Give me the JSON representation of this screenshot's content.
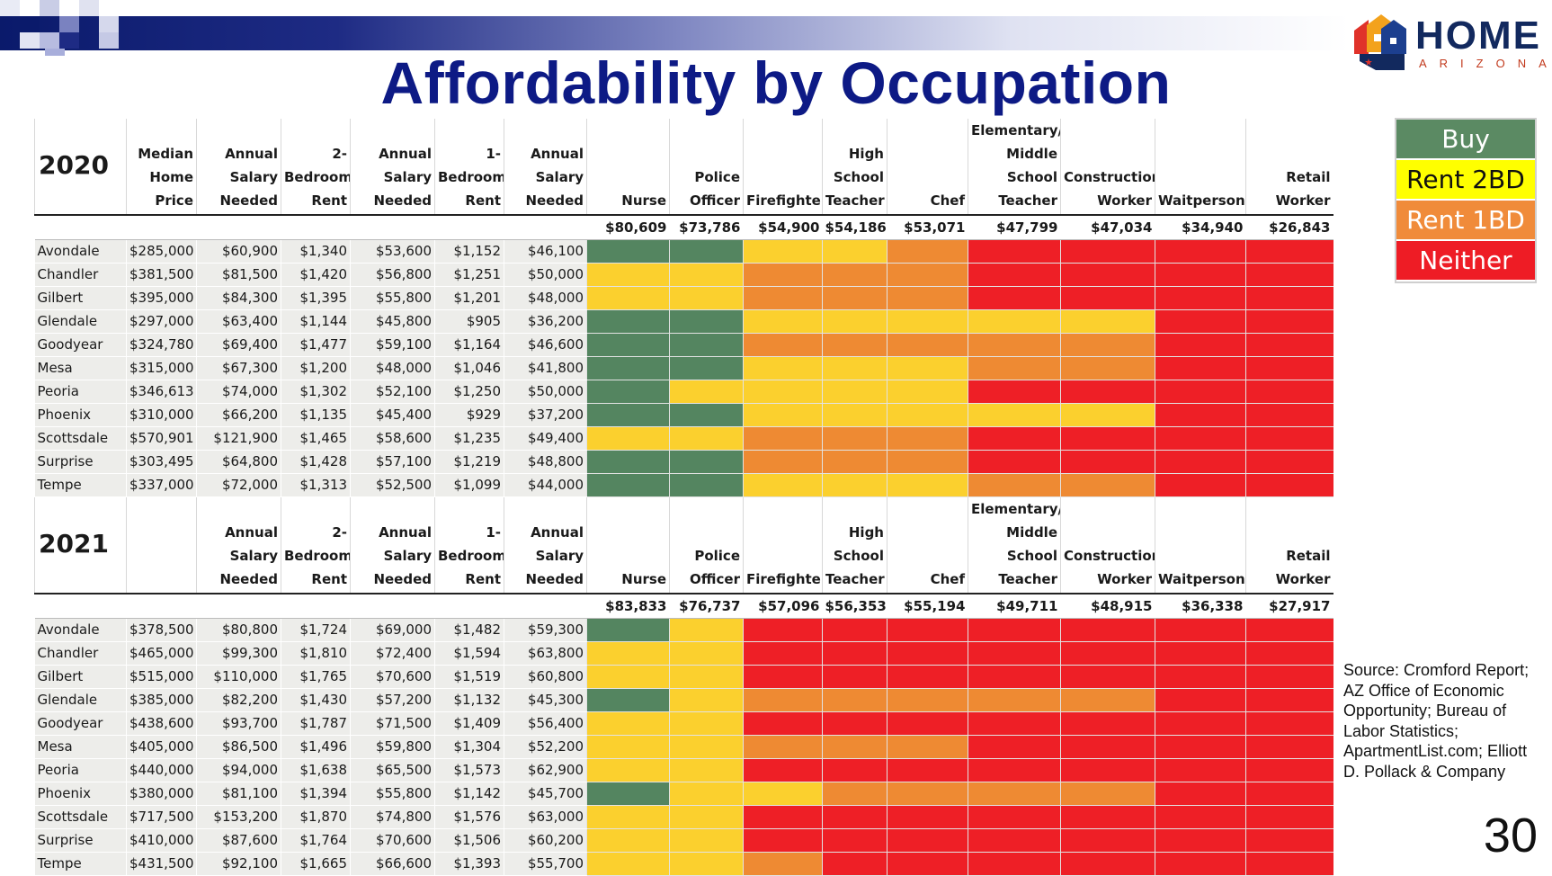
{
  "title": "Affordability by Occupation",
  "logo": {
    "word": "HOME",
    "sub": "ARIZONA"
  },
  "legend": [
    {
      "label": "Buy",
      "color": "#5b8a63",
      "text_color": "#ffffff"
    },
    {
      "label": "Rent 2BD",
      "color": "#ffff00",
      "text_color": "#111111"
    },
    {
      "label": "Rent 1BD",
      "color": "#f08b3a",
      "text_color": "#ffffff"
    },
    {
      "label": "Neither",
      "color": "#ee1c25",
      "text_color": "#ffffff"
    }
  ],
  "cell_colors": {
    "G": "#548560",
    "Y": "#fbd02e",
    "O": "#ee8a33",
    "R": "#ee1f26"
  },
  "occupations": [
    "Nurse",
    "Police Officer",
    "Firefighter",
    "High School Teacher",
    "Chef",
    "Elementary/ Middle School Teacher",
    "Construction Worker",
    "Waitperson",
    "Retail Worker"
  ],
  "tables": [
    {
      "year": "2020",
      "col_headers": [
        "Median Home Price",
        "Annual Salary Needed",
        "2- Bedroom Rent",
        "Annual Salary Needed",
        "1- Bedroom Rent",
        "Annual Salary Needed"
      ],
      "salaries": [
        "$80,609",
        "$73,786",
        "$54,900",
        "$54,186",
        "$53,071",
        "$47,799",
        "$47,034",
        "$34,940",
        "$26,843"
      ],
      "rows": [
        {
          "city": "Avondale",
          "values": [
            "$285,000",
            "$60,900",
            "$1,340",
            "$53,600",
            "$1,152",
            "$46,100"
          ],
          "colors": "GGYYORRRR"
        },
        {
          "city": "Chandler",
          "values": [
            "$381,500",
            "$81,500",
            "$1,420",
            "$56,800",
            "$1,251",
            "$50,000"
          ],
          "colors": "YYOOORRRR"
        },
        {
          "city": "Gilbert",
          "values": [
            "$395,000",
            "$84,300",
            "$1,395",
            "$55,800",
            "$1,201",
            "$48,000"
          ],
          "colors": "YYOOORRRR"
        },
        {
          "city": "Glendale",
          "values": [
            "$297,000",
            "$63,400",
            "$1,144",
            "$45,800",
            "$905",
            "$36,200"
          ],
          "colors": "GGYYYYYRR"
        },
        {
          "city": "Goodyear",
          "values": [
            "$324,780",
            "$69,400",
            "$1,477",
            "$59,100",
            "$1,164",
            "$46,600"
          ],
          "colors": "GGOOOOORR"
        },
        {
          "city": "Mesa",
          "values": [
            "$315,000",
            "$67,300",
            "$1,200",
            "$48,000",
            "$1,046",
            "$41,800"
          ],
          "colors": "GGYYYOORR"
        },
        {
          "city": "Peoria",
          "values": [
            "$346,613",
            "$74,000",
            "$1,302",
            "$52,100",
            "$1,250",
            "$50,000"
          ],
          "colors": "GYYYYRRRR"
        },
        {
          "city": "Phoenix",
          "values": [
            "$310,000",
            "$66,200",
            "$1,135",
            "$45,400",
            "$929",
            "$37,200"
          ],
          "colors": "GGYYYYYRR"
        },
        {
          "city": "Scottsdale",
          "values": [
            "$570,901",
            "$121,900",
            "$1,465",
            "$58,600",
            "$1,235",
            "$49,400"
          ],
          "colors": "YYOOORRRR"
        },
        {
          "city": "Surprise",
          "values": [
            "$303,495",
            "$64,800",
            "$1,428",
            "$57,100",
            "$1,219",
            "$48,800"
          ],
          "colors": "GGOOORRRR"
        },
        {
          "city": "Tempe",
          "values": [
            "$337,000",
            "$72,000",
            "$1,313",
            "$52,500",
            "$1,099",
            "$44,000"
          ],
          "colors": "GGYYYOORR"
        }
      ]
    },
    {
      "year": "2021",
      "col_headers": [
        "",
        "Annual Salary Needed",
        "2- Bedroom Rent",
        "Annual Salary Needed",
        "1- Bedroom Rent",
        "Annual Salary Needed"
      ],
      "salaries": [
        "$83,833",
        "$76,737",
        "$57,096",
        "$56,353",
        "$55,194",
        "$49,711",
        "$48,915",
        "$36,338",
        "$27,917"
      ],
      "rows": [
        {
          "city": "Avondale",
          "values": [
            "$378,500",
            "$80,800",
            "$1,724",
            "$69,000",
            "$1,482",
            "$59,300"
          ],
          "colors": "GYRRRRRRR"
        },
        {
          "city": "Chandler",
          "values": [
            "$465,000",
            "$99,300",
            "$1,810",
            "$72,400",
            "$1,594",
            "$63,800"
          ],
          "colors": "YYRRRRRRR"
        },
        {
          "city": "Gilbert",
          "values": [
            "$515,000",
            "$110,000",
            "$1,765",
            "$70,600",
            "$1,519",
            "$60,800"
          ],
          "colors": "YYRRRRRRR"
        },
        {
          "city": "Glendale",
          "values": [
            "$385,000",
            "$82,200",
            "$1,430",
            "$57,200",
            "$1,132",
            "$45,300"
          ],
          "colors": "GYOOOOORR"
        },
        {
          "city": "Goodyear",
          "values": [
            "$438,600",
            "$93,700",
            "$1,787",
            "$71,500",
            "$1,409",
            "$56,400"
          ],
          "colors": "YYRRRRRRR"
        },
        {
          "city": "Mesa",
          "values": [
            "$405,000",
            "$86,500",
            "$1,496",
            "$59,800",
            "$1,304",
            "$52,200"
          ],
          "colors": "YYOOORRRR"
        },
        {
          "city": "Peoria",
          "values": [
            "$440,000",
            "$94,000",
            "$1,638",
            "$65,500",
            "$1,573",
            "$62,900"
          ],
          "colors": "YYRRRRRRR"
        },
        {
          "city": "Phoenix",
          "values": [
            "$380,000",
            "$81,100",
            "$1,394",
            "$55,800",
            "$1,142",
            "$45,700"
          ],
          "colors": "GYYOOOORR"
        },
        {
          "city": "Scottsdale",
          "values": [
            "$717,500",
            "$153,200",
            "$1,870",
            "$74,800",
            "$1,576",
            "$63,000"
          ],
          "colors": "YYRRRRRRR"
        },
        {
          "city": "Surprise",
          "values": [
            "$410,000",
            "$87,600",
            "$1,764",
            "$70,600",
            "$1,506",
            "$60,200"
          ],
          "colors": "YYRRRRRRR"
        },
        {
          "city": "Tempe",
          "values": [
            "$431,500",
            "$92,100",
            "$1,665",
            "$66,600",
            "$1,393",
            "$55,700"
          ],
          "colors": "YYORRRRRR"
        }
      ]
    }
  ],
  "source": "Source: Cromford Report; AZ Office of Economic Opportunity; Bureau of Labor Statistics; ApartmentList.com; Elliott D. Pollack & Company",
  "page_number": "30"
}
